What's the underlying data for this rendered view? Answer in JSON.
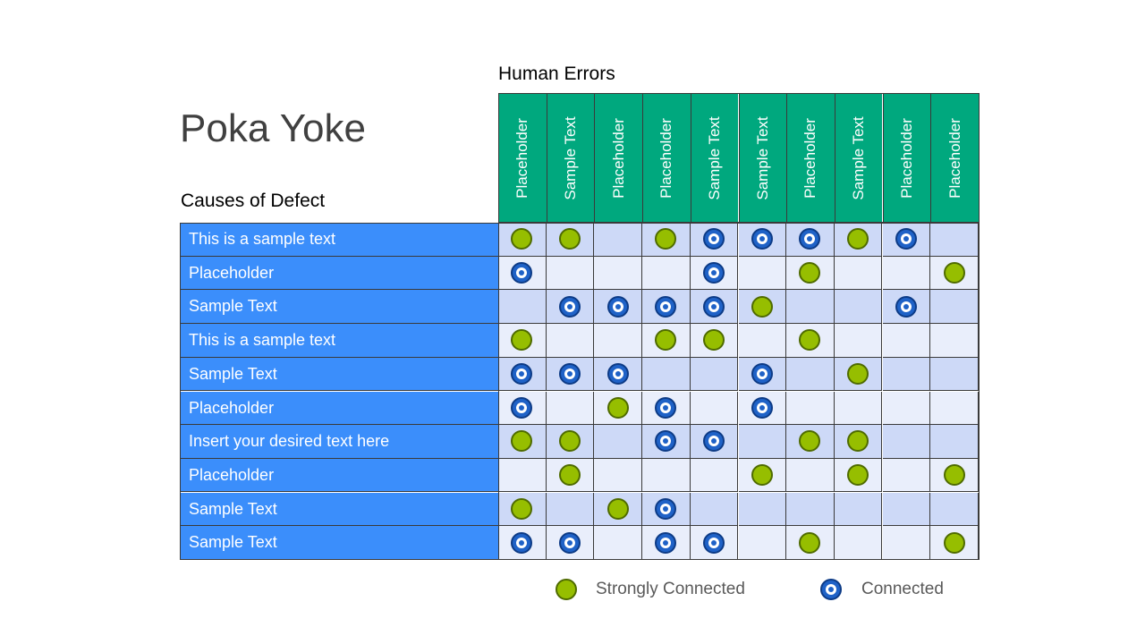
{
  "title": "Poka Yoke",
  "column_group_label": "Human Errors",
  "row_group_label": "Causes of Defect",
  "columns": [
    "Placeholder",
    "Sample Text",
    "Placeholder",
    "Placeholder",
    "Sample Text",
    "Sample Text",
    "Placeholder",
    "Sample Text",
    "Placeholder",
    "Placeholder"
  ],
  "rows": [
    {
      "label": "This is a sample text",
      "cells": [
        "S",
        "S",
        "",
        "S",
        "C",
        "C",
        "C",
        "S",
        "C",
        ""
      ]
    },
    {
      "label": "Placeholder",
      "cells": [
        "C",
        "",
        "",
        "",
        "C",
        "",
        "S",
        "",
        "",
        "S"
      ]
    },
    {
      "label": "Sample Text",
      "cells": [
        "",
        "C",
        "C",
        "C",
        "C",
        "S",
        "",
        "",
        "C",
        ""
      ]
    },
    {
      "label": "This is a sample text",
      "cells": [
        "S",
        "",
        "",
        "S",
        "S",
        "",
        "S",
        "",
        "",
        ""
      ]
    },
    {
      "label": "Sample Text",
      "cells": [
        "C",
        "C",
        "C",
        "",
        "",
        "C",
        "",
        "S",
        "",
        ""
      ]
    },
    {
      "label": "Placeholder",
      "cells": [
        "C",
        "",
        "S",
        "C",
        "",
        "C",
        "",
        "",
        "",
        ""
      ]
    },
    {
      "label": "Insert your desired text here",
      "cells": [
        "S",
        "S",
        "",
        "C",
        "C",
        "",
        "S",
        "S",
        "",
        ""
      ]
    },
    {
      "label": "Placeholder",
      "cells": [
        "",
        "S",
        "",
        "",
        "",
        "S",
        "",
        "S",
        "",
        "S"
      ]
    },
    {
      "label": "Sample Text",
      "cells": [
        "S",
        "",
        "S",
        "C",
        "",
        "",
        "",
        "",
        "",
        ""
      ]
    },
    {
      "label": "Sample Text",
      "cells": [
        "C",
        "C",
        "",
        "C",
        "C",
        "",
        "S",
        "",
        "",
        "S"
      ]
    }
  ],
  "legend": {
    "strong_label": "Strongly Connected",
    "connected_label": "Connected"
  },
  "colors": {
    "header_bg": "#00a87e",
    "row_label_bg": "#3b8efb",
    "strong_dot": "#96be00",
    "connected_dot": "#1f62c7"
  }
}
